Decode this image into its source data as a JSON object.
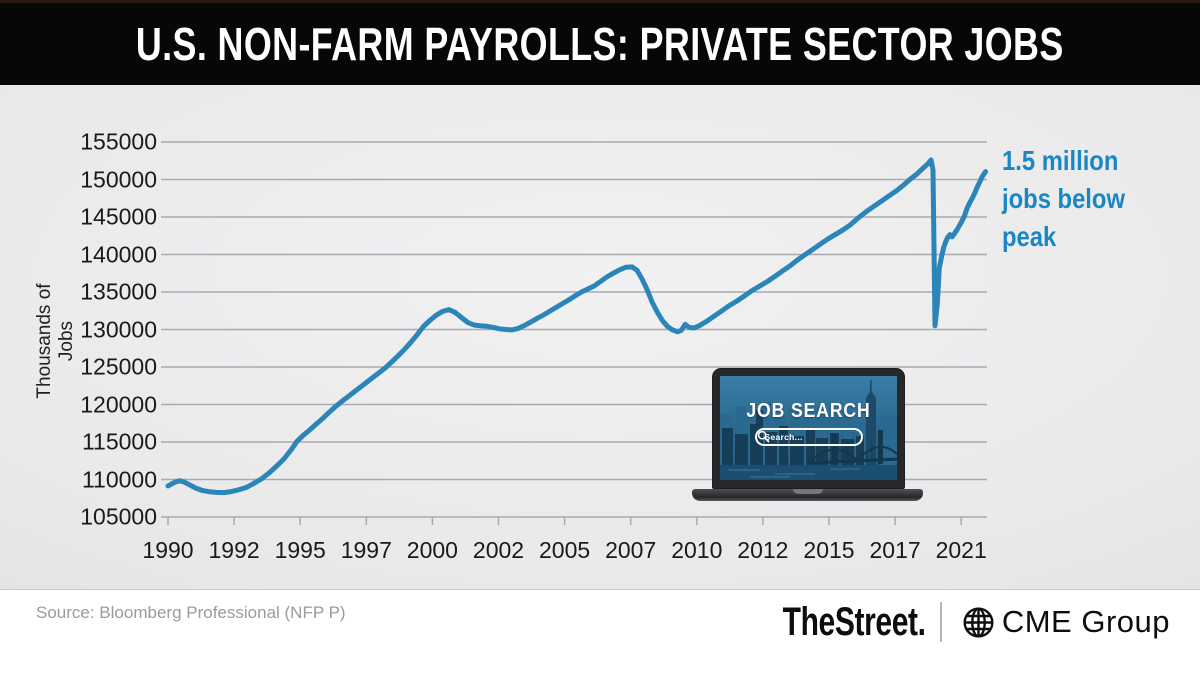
{
  "header": {
    "title": "U.S. NON-FARM PAYROLLS: PRIVATE SECTOR JOBS"
  },
  "chart_data": {
    "type": "line",
    "title": "U.S. Non-Farm Payrolls: Private Sector Jobs",
    "ylabel": "Thousands of Jobs",
    "ylim": [
      105000,
      155000
    ],
    "y_ticks": [
      155000,
      150000,
      145000,
      140000,
      135000,
      130000,
      125000,
      120000,
      115000,
      110000,
      105000
    ],
    "x_tick_labels": [
      "1990",
      "1992",
      "1995",
      "1997",
      "2000",
      "2002",
      "2005",
      "2007",
      "2010",
      "2012",
      "2015",
      "2017",
      "2021"
    ],
    "x_domain_years": [
      1990,
      2022.33
    ],
    "grid": "horizontal",
    "legend": "none",
    "line_color": "#2c85b9",
    "grid_color": "#a9a9af",
    "series": [
      {
        "name": "Private sector jobs (thousands)",
        "points": [
          [
            1990.0,
            109150
          ],
          [
            1990.25,
            109600
          ],
          [
            1990.45,
            109830
          ],
          [
            1990.65,
            109650
          ],
          [
            1990.85,
            109300
          ],
          [
            1991.1,
            108850
          ],
          [
            1991.35,
            108550
          ],
          [
            1991.6,
            108380
          ],
          [
            1991.9,
            108280
          ],
          [
            1992.2,
            108260
          ],
          [
            1992.5,
            108380
          ],
          [
            1992.8,
            108620
          ],
          [
            1993.1,
            108950
          ],
          [
            1993.4,
            109500
          ],
          [
            1993.7,
            110100
          ],
          [
            1994.0,
            110900
          ],
          [
            1994.3,
            111800
          ],
          [
            1994.6,
            112800
          ],
          [
            1994.9,
            114100
          ],
          [
            1995.1,
            115100
          ],
          [
            1995.35,
            115900
          ],
          [
            1995.6,
            116600
          ],
          [
            1995.85,
            117350
          ],
          [
            1996.1,
            118100
          ],
          [
            1996.35,
            118900
          ],
          [
            1996.6,
            119650
          ],
          [
            1996.85,
            120350
          ],
          [
            1997.1,
            121000
          ],
          [
            1997.35,
            121650
          ],
          [
            1997.6,
            122300
          ],
          [
            1997.85,
            122950
          ],
          [
            1998.1,
            123600
          ],
          [
            1998.35,
            124250
          ],
          [
            1998.6,
            124900
          ],
          [
            1998.85,
            125700
          ],
          [
            1999.1,
            126500
          ],
          [
            1999.35,
            127350
          ],
          [
            1999.6,
            128300
          ],
          [
            1999.85,
            129300
          ],
          [
            2000.1,
            130400
          ],
          [
            2000.35,
            131200
          ],
          [
            2000.6,
            131900
          ],
          [
            2000.85,
            132400
          ],
          [
            2001.1,
            132650
          ],
          [
            2001.35,
            132300
          ],
          [
            2001.6,
            131600
          ],
          [
            2001.85,
            130950
          ],
          [
            2002.1,
            130600
          ],
          [
            2002.35,
            130500
          ],
          [
            2002.6,
            130420
          ],
          [
            2002.85,
            130300
          ],
          [
            2003.1,
            130100
          ],
          [
            2003.35,
            130000
          ],
          [
            2003.6,
            129950
          ],
          [
            2003.85,
            130150
          ],
          [
            2004.1,
            130550
          ],
          [
            2004.35,
            131000
          ],
          [
            2004.6,
            131500
          ],
          [
            2004.85,
            131950
          ],
          [
            2005.1,
            132450
          ],
          [
            2005.35,
            132950
          ],
          [
            2005.6,
            133450
          ],
          [
            2005.85,
            133950
          ],
          [
            2006.1,
            134500
          ],
          [
            2006.35,
            135000
          ],
          [
            2006.6,
            135400
          ],
          [
            2006.85,
            135800
          ],
          [
            2007.1,
            136400
          ],
          [
            2007.35,
            137000
          ],
          [
            2007.6,
            137500
          ],
          [
            2007.85,
            137950
          ],
          [
            2008.1,
            138300
          ],
          [
            2008.35,
            138350
          ],
          [
            2008.55,
            137900
          ],
          [
            2008.75,
            136700
          ],
          [
            2008.95,
            135300
          ],
          [
            2009.15,
            133600
          ],
          [
            2009.35,
            132300
          ],
          [
            2009.55,
            131200
          ],
          [
            2009.75,
            130400
          ],
          [
            2009.95,
            129950
          ],
          [
            2010.15,
            129700
          ],
          [
            2010.3,
            129900
          ],
          [
            2010.45,
            130700
          ],
          [
            2010.6,
            130300
          ],
          [
            2010.8,
            130200
          ],
          [
            2011.0,
            130500
          ],
          [
            2011.3,
            131100
          ],
          [
            2011.6,
            131800
          ],
          [
            2011.9,
            132500
          ],
          [
            2012.2,
            133200
          ],
          [
            2012.5,
            133800
          ],
          [
            2012.8,
            134500
          ],
          [
            2013.1,
            135200
          ],
          [
            2013.4,
            135800
          ],
          [
            2013.7,
            136400
          ],
          [
            2014.0,
            137100
          ],
          [
            2014.3,
            137800
          ],
          [
            2014.6,
            138500
          ],
          [
            2014.9,
            139300
          ],
          [
            2015.2,
            140000
          ],
          [
            2015.5,
            140700
          ],
          [
            2015.8,
            141400
          ],
          [
            2016.1,
            142100
          ],
          [
            2016.4,
            142700
          ],
          [
            2016.7,
            143300
          ],
          [
            2017.0,
            144000
          ],
          [
            2017.3,
            144900
          ],
          [
            2017.6,
            145700
          ],
          [
            2017.9,
            146400
          ],
          [
            2018.2,
            147100
          ],
          [
            2018.5,
            147800
          ],
          [
            2018.8,
            148500
          ],
          [
            2019.1,
            149300
          ],
          [
            2019.35,
            150050
          ],
          [
            2019.6,
            150700
          ],
          [
            2019.85,
            151500
          ],
          [
            2020.05,
            152100
          ],
          [
            2020.17,
            152600
          ],
          [
            2020.25,
            151300
          ],
          [
            2020.33,
            130500
          ],
          [
            2020.42,
            133400
          ],
          [
            2020.5,
            138200
          ],
          [
            2020.58,
            139600
          ],
          [
            2020.67,
            140900
          ],
          [
            2020.75,
            141700
          ],
          [
            2020.83,
            142300
          ],
          [
            2020.92,
            142650
          ],
          [
            2021.0,
            142350
          ],
          [
            2021.1,
            142800
          ],
          [
            2021.2,
            143300
          ],
          [
            2021.3,
            143900
          ],
          [
            2021.4,
            144500
          ],
          [
            2021.5,
            145200
          ],
          [
            2021.6,
            146200
          ],
          [
            2021.7,
            146900
          ],
          [
            2021.8,
            147500
          ],
          [
            2021.9,
            148200
          ],
          [
            2022.0,
            149000
          ],
          [
            2022.1,
            149700
          ],
          [
            2022.2,
            150400
          ],
          [
            2022.33,
            151050
          ]
        ]
      }
    ],
    "annotation": {
      "text": "1.5 million jobs below peak",
      "lines": [
        "1.5 million",
        "jobs below",
        "peak"
      ],
      "color": "#1a87c5"
    }
  },
  "laptop": {
    "screen_title": "JOB SEARCH",
    "search_placeholder": "Search..."
  },
  "footer": {
    "source": "Source: Bloomberg Professional (NFP P)",
    "logo_thestreet": "TheStreet.",
    "logo_cme": "CME Group"
  }
}
